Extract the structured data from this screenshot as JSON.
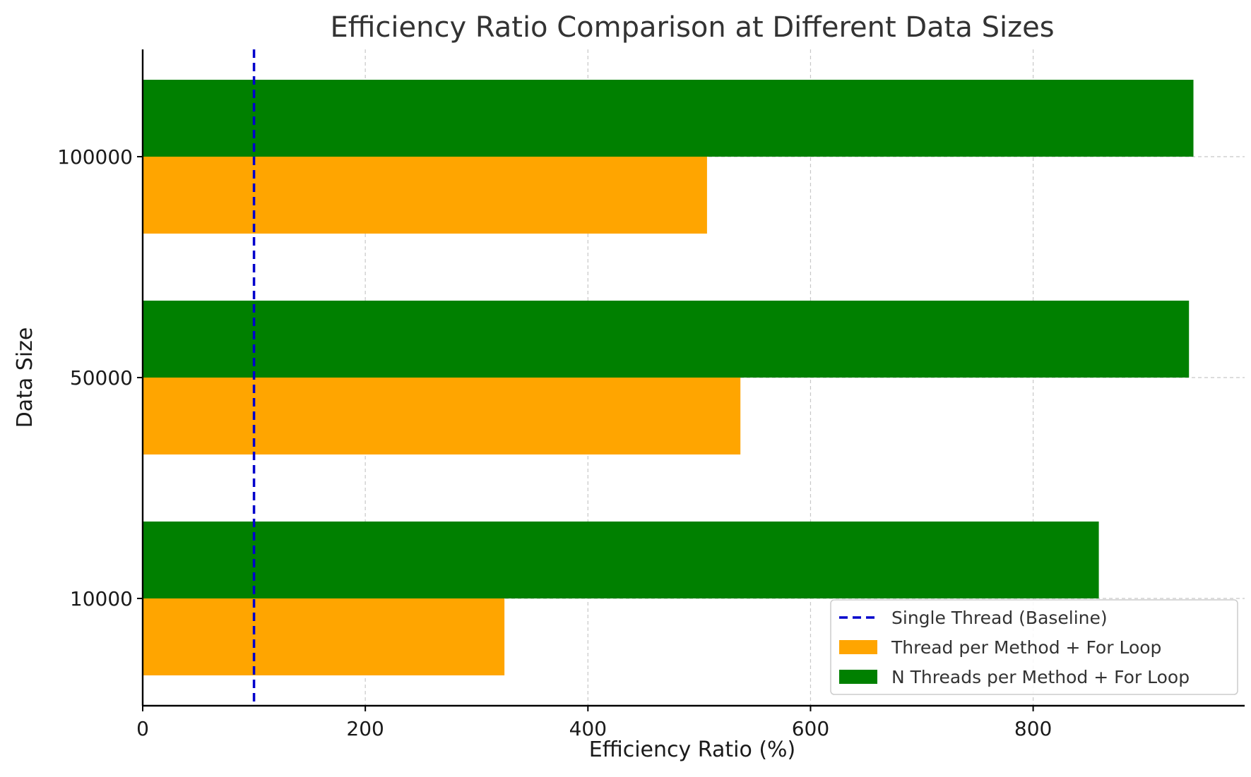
{
  "chart_data": {
    "type": "bar",
    "orientation": "horizontal",
    "title": "Efficiency Ratio Comparison at Different Data Sizes",
    "xlabel": "Efficiency Ratio (%)",
    "ylabel": "Data Size",
    "xlim": [
      0,
      990
    ],
    "xticks": [
      0,
      200,
      400,
      600,
      800
    ],
    "categories": [
      "10000",
      "50000",
      "100000"
    ],
    "series": [
      {
        "name": "Thread per Method + For Loop",
        "color": "#FFA500",
        "values": [
          325,
          537,
          507
        ]
      },
      {
        "name": "N Threads per Method + For Loop",
        "color": "#008000",
        "values": [
          859,
          940,
          944
        ]
      }
    ],
    "reference_line": {
      "name": "Single Thread (Baseline)",
      "value": 100,
      "color": "#0000CC",
      "style": "dashed"
    },
    "grid": true,
    "legend_position": "lower-right"
  }
}
